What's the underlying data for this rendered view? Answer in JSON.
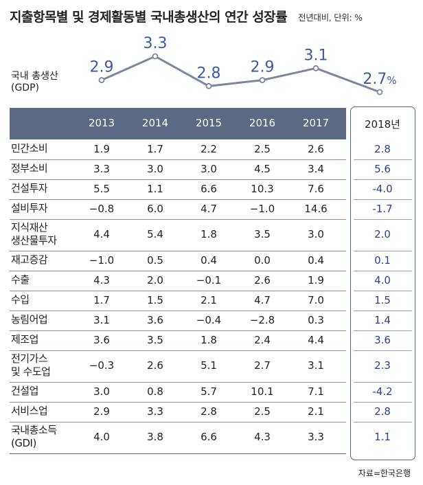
{
  "title": "지출항목별 및 경제활동별 국내총생산의 연간 성장률",
  "subtitle": "전년대비, 단위: %",
  "source": "자료=한국은행",
  "gdp_label_line1": "국내 총생산",
  "gdp_label_line2": "(GDP)",
  "colors": {
    "header": "#5c6983",
    "line": "#7c86a0",
    "value2018": "#2a3f8f"
  },
  "chart_data": {
    "type": "line",
    "title": "국내 총생산 (GDP)",
    "x": [
      "2013",
      "2014",
      "2015",
      "2016",
      "2017",
      "2018년"
    ],
    "values": [
      2.9,
      3.3,
      2.8,
      2.9,
      3.1,
      2.7
    ],
    "value_labels": [
      "2.9",
      "3.3",
      "2.8",
      "2.9",
      "3.1",
      "2.7"
    ],
    "unit": "%",
    "ylim": [
      2.7,
      3.3
    ]
  },
  "table": {
    "years": [
      "2013",
      "2014",
      "2015",
      "2016",
      "2017"
    ],
    "highlight_year": "2018년",
    "rows": [
      {
        "label": [
          "민간소비"
        ],
        "values": [
          "1.9",
          "1.7",
          "2.2",
          "2.5",
          "2.6"
        ],
        "v2018": "2.8"
      },
      {
        "label": [
          "정부소비"
        ],
        "values": [
          "3.3",
          "3.0",
          "3.0",
          "4.5",
          "3.4"
        ],
        "v2018": "5.6"
      },
      {
        "label": [
          "건설투자"
        ],
        "values": [
          "5.5",
          "1.1",
          "6.6",
          "10.3",
          "7.6"
        ],
        "v2018": "-4.0"
      },
      {
        "label": [
          "설비투자"
        ],
        "values": [
          "−0.8",
          "6.0",
          "4.7",
          "−1.0",
          "14.6"
        ],
        "v2018": "-1.7"
      },
      {
        "label": [
          "지식재산",
          "생산물투자"
        ],
        "values": [
          "4.4",
          "5.4",
          "1.8",
          "3.5",
          "3.0"
        ],
        "v2018": "2.0"
      },
      {
        "label": [
          "재고증감"
        ],
        "values": [
          "−1.0",
          "0.5",
          "0.4",
          "0.0",
          "0.4"
        ],
        "v2018": "0.1"
      },
      {
        "label": [
          "수출"
        ],
        "values": [
          "4.3",
          "2.0",
          "−0.1",
          "2.6",
          "1.9"
        ],
        "v2018": "4.0"
      },
      {
        "label": [
          "수입"
        ],
        "values": [
          "1.7",
          "1.5",
          "2.1",
          "4.7",
          "7.0"
        ],
        "v2018": "1.5"
      },
      {
        "label": [
          "농림어업"
        ],
        "values": [
          "3.1",
          "3.6",
          "−0.4",
          "−2.8",
          "0.3"
        ],
        "v2018": "1.4"
      },
      {
        "label": [
          "제조업"
        ],
        "values": [
          "3.6",
          "3.5",
          "1.8",
          "2.4",
          "4.4"
        ],
        "v2018": "3.6"
      },
      {
        "label": [
          "전기가스",
          "및 수도업"
        ],
        "values": [
          "−0.3",
          "2.6",
          "5.1",
          "2.7",
          "3.1"
        ],
        "v2018": "2.3"
      },
      {
        "label": [
          "건설업"
        ],
        "values": [
          "3.0",
          "0.8",
          "5.7",
          "10.1",
          "7.1"
        ],
        "v2018": "-4.2"
      },
      {
        "label": [
          "서비스업"
        ],
        "values": [
          "2.9",
          "3.3",
          "2.8",
          "2.5",
          "2.1"
        ],
        "v2018": "2.8"
      },
      {
        "label": [
          "국내총소득",
          "(GDI)"
        ],
        "values": [
          "4.0",
          "3.8",
          "6.6",
          "4.3",
          "3.3"
        ],
        "v2018": "1.1"
      }
    ]
  }
}
